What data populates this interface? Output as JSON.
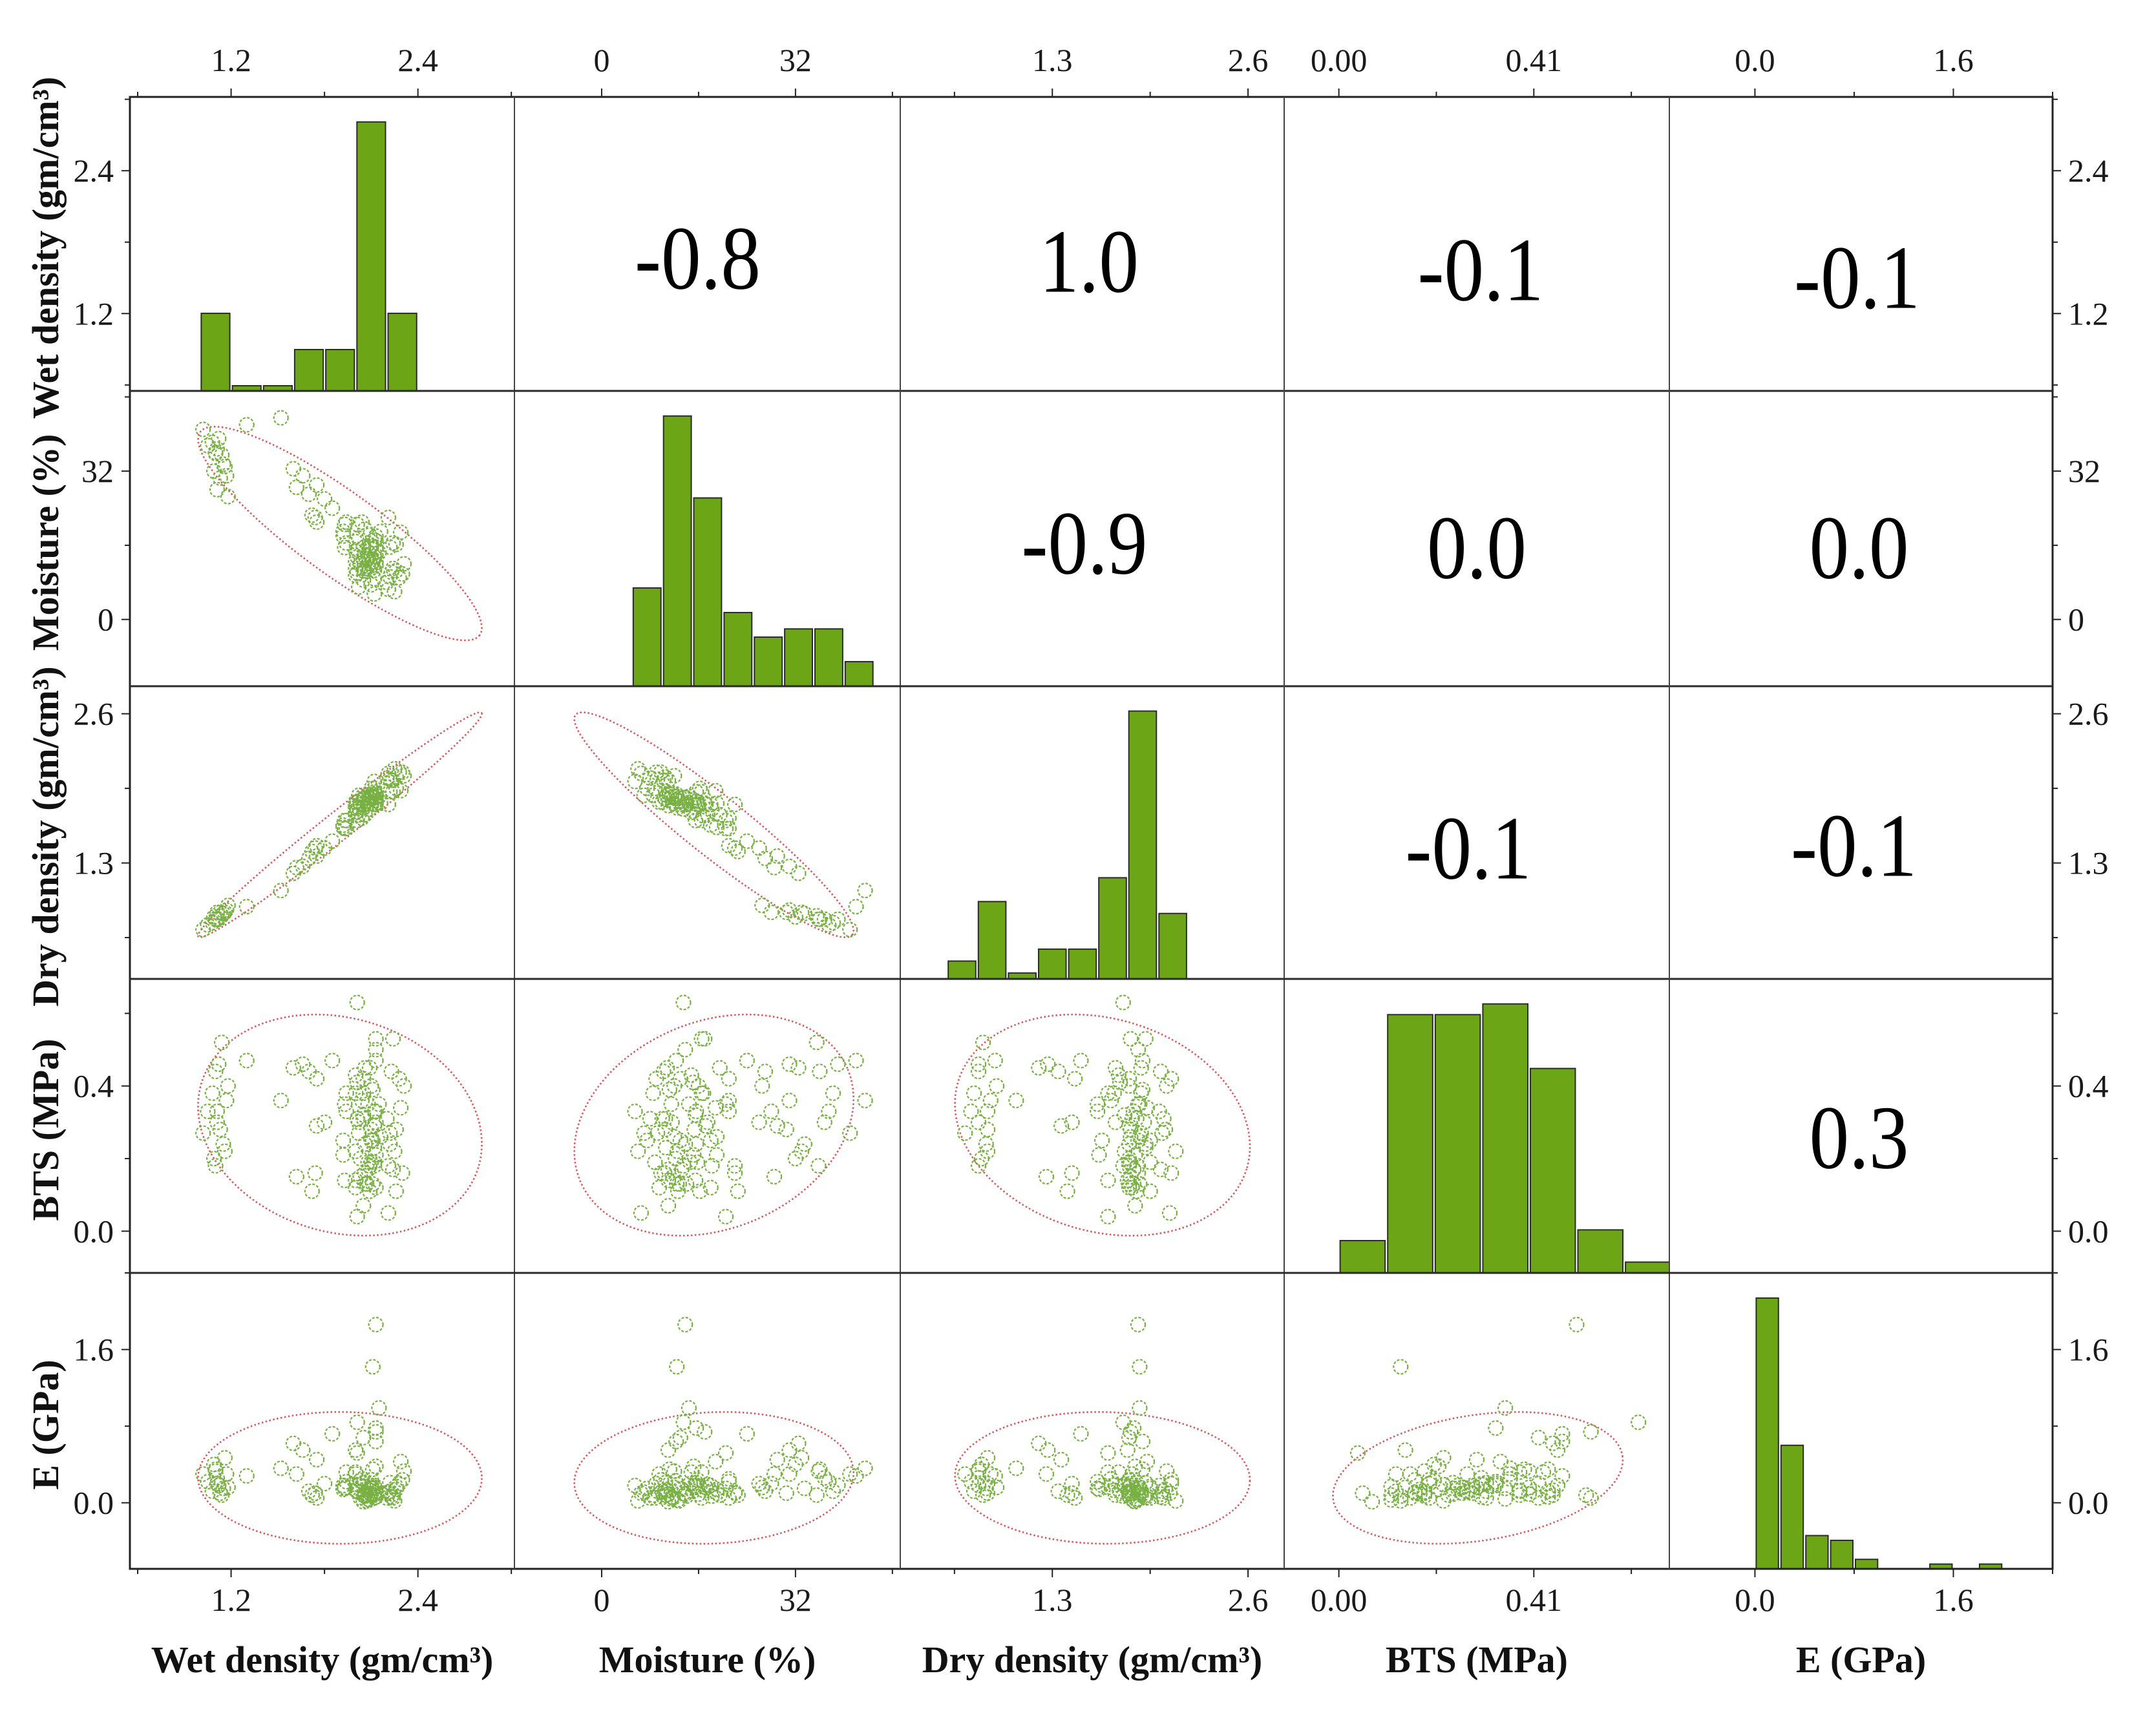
{
  "chart_data": {
    "type": "scatter",
    "form": "scatter_matrix",
    "title": "",
    "colors": {
      "bar_fill": "#6ca617",
      "bar_edge": "#2b2b2b",
      "point": "#78b043",
      "ellipse": "#d6585a",
      "frame": "#222222",
      "text": "#1a1a1a"
    },
    "variables": [
      {
        "label": "Wet density (gm/cm³)",
        "range": [
          0.55,
          3.02
        ],
        "x_ticks": [
          {
            "value": 1.2,
            "label": "1.2"
          },
          {
            "value": 2.4,
            "label": "2.4"
          }
        ],
        "x_minor": [
          0.6,
          1.8,
          3.0
        ],
        "y_ticks": [
          {
            "value": 1.2,
            "label": "1.2"
          },
          {
            "value": 2.4,
            "label": "2.4"
          }
        ],
        "y_minor": [
          0.6,
          1.8,
          3.0
        ],
        "histogram": {
          "bin_start": 1.0,
          "bin_width": 0.2,
          "counts": [
            15,
            1,
            1,
            8,
            8,
            52,
            15
          ]
        }
      },
      {
        "label": "Moisture (%)",
        "range": [
          -14.4,
          49.3
        ],
        "x_ticks": [
          {
            "value": 0,
            "label": "0"
          },
          {
            "value": 32,
            "label": "32"
          }
        ],
        "x_minor": [
          16,
          48
        ],
        "y_ticks": [
          {
            "value": 0,
            "label": "0"
          },
          {
            "value": 32,
            "label": "32"
          }
        ],
        "y_minor": [
          16,
          48
        ],
        "histogram": {
          "bin_start": 5,
          "bin_width": 5,
          "counts": [
            12,
            33,
            23,
            9,
            6,
            7,
            7,
            3
          ]
        }
      },
      {
        "label": "Dry density (gm/cm³)",
        "range": [
          0.29,
          2.84
        ],
        "x_ticks": [
          {
            "value": 1.3,
            "label": "1.3"
          },
          {
            "value": 2.6,
            "label": "2.6"
          }
        ],
        "x_minor": [
          0.65,
          1.95
        ],
        "y_ticks": [
          {
            "value": 1.3,
            "label": "1.3"
          },
          {
            "value": 2.6,
            "label": "2.6"
          }
        ],
        "y_minor": [
          0.65,
          1.95
        ],
        "histogram": {
          "bin_start": 0.6,
          "bin_width": 0.2,
          "counts": [
            3,
            13,
            1,
            5,
            5,
            17,
            45,
            11
          ]
        }
      },
      {
        "label": "BTS (MPa)",
        "range": [
          -0.115,
          0.695
        ],
        "x_ticks": [
          {
            "value": 0.0,
            "label": "0.00"
          },
          {
            "value": 0.41,
            "label": "0.41"
          }
        ],
        "x_minor": [
          0.205,
          0.615
        ],
        "y_ticks": [
          {
            "value": 0.0,
            "label": "0.0"
          },
          {
            "value": 0.4,
            "label": "0.4"
          }
        ],
        "y_minor": [
          0.2,
          0.6
        ],
        "histogram": {
          "bin_start": 0.0,
          "bin_width": 0.1,
          "counts": [
            3,
            24,
            24,
            25,
            19,
            4,
            1
          ]
        }
      },
      {
        "label": "E (GPa)",
        "range": [
          -0.69,
          2.4
        ],
        "x_ticks": [
          {
            "value": 0.0,
            "label": "0.0"
          },
          {
            "value": 1.6,
            "label": "1.6"
          }
        ],
        "x_minor": [
          0.8,
          2.4
        ],
        "y_ticks": [
          {
            "value": 0.0,
            "label": "0.0"
          },
          {
            "value": 1.6,
            "label": "1.6"
          }
        ],
        "y_minor": [
          0.8,
          2.4
        ],
        "histogram": {
          "bin_start": 0.0,
          "bin_width": 0.2,
          "counts": [
            57,
            26,
            7,
            6,
            2,
            0,
            0,
            1,
            0,
            1
          ]
        }
      }
    ],
    "correlations": [
      {
        "vars": [
          0,
          1
        ],
        "value": "-0.8"
      },
      {
        "vars": [
          0,
          2
        ],
        "value": "1.0"
      },
      {
        "vars": [
          0,
          3
        ],
        "value": "-0.1"
      },
      {
        "vars": [
          0,
          4
        ],
        "value": "-0.1"
      },
      {
        "vars": [
          1,
          2
        ],
        "value": "-0.9"
      },
      {
        "vars": [
          1,
          3
        ],
        "value": "0.0"
      },
      {
        "vars": [
          1,
          4
        ],
        "value": "0.0"
      },
      {
        "vars": [
          2,
          3
        ],
        "value": "-0.1"
      },
      {
        "vars": [
          2,
          4
        ],
        "value": "-0.1"
      },
      {
        "vars": [
          3,
          4
        ],
        "value": "0.3"
      }
    ],
    "samples": [
      [
        1.02,
        41.0,
        0.72,
        0.27,
        0.3
      ],
      [
        1.05,
        37.5,
        0.76,
        0.33,
        0.22
      ],
      [
        1.08,
        38.2,
        0.78,
        0.38,
        0.12
      ],
      [
        1.1,
        36.0,
        0.81,
        0.44,
        0.35
      ],
      [
        1.12,
        39.0,
        0.81,
        0.46,
        0.18
      ],
      [
        1.14,
        35.5,
        0.84,
        0.52,
        0.08
      ],
      [
        1.11,
        36.8,
        0.81,
        0.3,
        0.26
      ],
      [
        1.15,
        33.5,
        0.86,
        0.24,
        0.15
      ],
      [
        1.09,
        32.0,
        0.83,
        0.2,
        0.4
      ],
      [
        1.17,
        31.0,
        0.89,
        0.36,
        0.3
      ],
      [
        1.13,
        30.5,
        0.87,
        0.28,
        0.1
      ],
      [
        1.16,
        33.0,
        0.87,
        0.22,
        0.47
      ],
      [
        1.11,
        28.0,
        0.87,
        0.33,
        0.2
      ],
      [
        1.18,
        26.5,
        0.93,
        0.4,
        0.16
      ],
      [
        1.1,
        35.8,
        0.81,
        0.18,
        0.33
      ],
      [
        1.3,
        42.0,
        0.92,
        0.47,
        0.28
      ],
      [
        1.52,
        43.5,
        1.06,
        0.36,
        0.36
      ],
      [
        1.6,
        32.5,
        1.21,
        0.45,
        0.62
      ],
      [
        1.66,
        31.0,
        1.27,
        0.46,
        0.55
      ],
      [
        1.62,
        28.5,
        1.26,
        0.15,
        0.3
      ],
      [
        1.7,
        27.0,
        1.34,
        0.44,
        0.12
      ],
      [
        1.75,
        29.0,
        1.36,
        0.29,
        0.45
      ],
      [
        1.8,
        26.0,
        1.43,
        0.3,
        0.2
      ],
      [
        1.72,
        22.5,
        1.4,
        0.11,
        0.08
      ],
      [
        1.74,
        22.0,
        1.43,
        0.16,
        0.1
      ],
      [
        1.85,
        24.0,
        1.49,
        0.47,
        0.72
      ],
      [
        1.75,
        21.0,
        1.45,
        0.42,
        0.05
      ],
      [
        1.93,
        20.5,
        1.6,
        0.35,
        0.15
      ],
      [
        1.92,
        18.0,
        1.63,
        0.25,
        0.18
      ],
      [
        1.94,
        16.5,
        1.67,
        0.38,
        0.32
      ],
      [
        1.92,
        19.0,
        1.61,
        0.21,
        0.14
      ],
      [
        1.93,
        15.5,
        1.67,
        0.14,
        0.16
      ],
      [
        1.94,
        21.0,
        1.6,
        0.33,
        0.22
      ],
      [
        2.21,
        6.5,
        2.08,
        0.05,
        0.1
      ],
      [
        2.2,
        8.0,
        2.04,
        0.31,
        0.05
      ],
      [
        2.28,
        9.0,
        2.09,
        0.42,
        0.2
      ],
      [
        2.1,
        7.5,
        1.95,
        0.25,
        0.15
      ],
      [
        2.05,
        8.5,
        1.89,
        0.38,
        0.08
      ],
      [
        2.0,
        9.5,
        1.83,
        0.12,
        0.3
      ],
      [
        2.25,
        6.0,
        2.12,
        0.22,
        0.02
      ],
      [
        2.22,
        9.2,
        2.03,
        0.27,
        0.12
      ],
      [
        2.12,
        5.5,
        2.01,
        0.33,
        0.18
      ],
      [
        2.12,
        8.8,
        1.95,
        0.19,
        0.05
      ],
      [
        2.02,
        7.0,
        1.89,
        0.27,
        0.11
      ],
      [
        2.3,
        9.8,
        2.09,
        0.16,
        0.24
      ],
      [
        2.26,
        10.5,
        2.05,
        0.28,
        0.14
      ],
      [
        2.24,
        11.0,
        2.02,
        0.17,
        0.09
      ],
      [
        2.31,
        12.0,
        2.06,
        0.4,
        0.33
      ],
      [
        2.23,
        10.2,
        2.02,
        0.44,
        0.06
      ],
      [
        2.05,
        10.5,
        1.86,
        0.31,
        0.21
      ],
      [
        2.08,
        11.5,
        1.87,
        0.35,
        0.04
      ],
      [
        2.1,
        12.0,
        1.88,
        0.26,
        0.16
      ],
      [
        2.05,
        13.0,
        1.81,
        0.42,
        0.68
      ],
      [
        2.12,
        13.5,
        1.87,
        0.18,
        0.1
      ],
      [
        2.0,
        11.0,
        1.8,
        0.14,
        0.55
      ],
      [
        2.06,
        14.0,
        1.81,
        0.13,
        0.07
      ],
      [
        2.09,
        10.8,
        1.89,
        0.45,
        0.13
      ],
      [
        2.0,
        12.5,
        1.78,
        0.22,
        0.19
      ],
      [
        2.13,
        15.6,
        1.84,
        0.33,
        0.78
      ],
      [
        2.07,
        12.8,
        1.84,
        0.13,
        0.02
      ],
      [
        2.11,
        11.2,
        1.9,
        0.39,
        0.35
      ],
      [
        2.06,
        13.8,
        1.81,
        0.24,
        0.09
      ],
      [
        2.01,
        10.0,
        1.83,
        0.31,
        0.12
      ],
      [
        2.13,
        12.3,
        1.9,
        0.47,
        0.64
      ],
      [
        2.03,
        11.8,
        1.82,
        0.15,
        0.05
      ],
      [
        2.1,
        15.3,
        1.82,
        0.28,
        0.18
      ],
      [
        2.05,
        11.0,
        1.85,
        0.07,
        0.01
      ],
      [
        2.03,
        12.2,
        1.81,
        0.2,
        0.23
      ],
      [
        2.08,
        13.2,
        1.84,
        0.17,
        0.14
      ],
      [
        2.12,
        10.6,
        1.92,
        0.23,
        0.08
      ],
      [
        2.01,
        13.5,
        1.77,
        0.63,
        0.84
      ],
      [
        2.06,
        10.4,
        1.87,
        0.16,
        0.11
      ],
      [
        2.13,
        11.6,
        1.91,
        0.3,
        0.06
      ],
      [
        2.08,
        14.6,
        1.82,
        0.19,
        0.2
      ],
      [
        2.11,
        13.0,
        1.87,
        0.25,
        0.15
      ],
      [
        2.0,
        14.8,
        1.74,
        0.43,
        0.32
      ],
      [
        2.09,
        12.6,
        1.86,
        0.11,
        0.03
      ],
      [
        2.13,
        15.2,
        1.85,
        0.21,
        0.38
      ],
      [
        2.05,
        15.5,
        1.78,
        0.32,
        0.17
      ],
      [
        2.1,
        16.0,
        1.81,
        0.4,
        0.09
      ],
      [
        2.13,
        17.0,
        1.82,
        0.53,
        0.74
      ],
      [
        2.13,
        18.0,
        1.81,
        0.12,
        0.12
      ],
      [
        2.1,
        15.8,
        1.81,
        0.19,
        0.24
      ],
      [
        2.24,
        16.5,
        1.92,
        0.53,
        0.05
      ],
      [
        2.02,
        17.5,
        1.72,
        0.3,
        0.19
      ],
      [
        2.16,
        19.0,
        1.82,
        0.26,
        0.1
      ],
      [
        2.26,
        16.2,
        1.95,
        0.11,
        0.17
      ],
      [
        2.0,
        16.8,
        1.71,
        0.38,
        0.13
      ],
      [
        2.15,
        14.4,
        1.88,
        0.35,
        0.99
      ],
      [
        2.06,
        19.5,
        1.72,
        0.45,
        0.08
      ],
      [
        2.22,
        15.6,
        1.92,
        0.24,
        0.21
      ],
      [
        2.13,
        13.8,
        1.87,
        0.5,
        1.86
      ],
      [
        2.12,
        17.2,
        1.81,
        0.29,
        0.16
      ],
      [
        2.01,
        15.1,
        1.75,
        0.41,
        0.12
      ],
      [
        2.29,
        18.8,
        1.93,
        0.34,
        0.43
      ],
      [
        2.11,
        12.4,
        1.88,
        0.13,
        1.42
      ],
      [
        2.09,
        18.2,
        1.77,
        0.18,
        0.07
      ],
      [
        2.04,
        21.0,
        1.69,
        0.36,
        0.25
      ],
      [
        2.21,
        22.0,
        1.81,
        0.18,
        0.11
      ],
      [
        2.01,
        20.5,
        1.67,
        0.04,
        0.52
      ]
    ]
  }
}
